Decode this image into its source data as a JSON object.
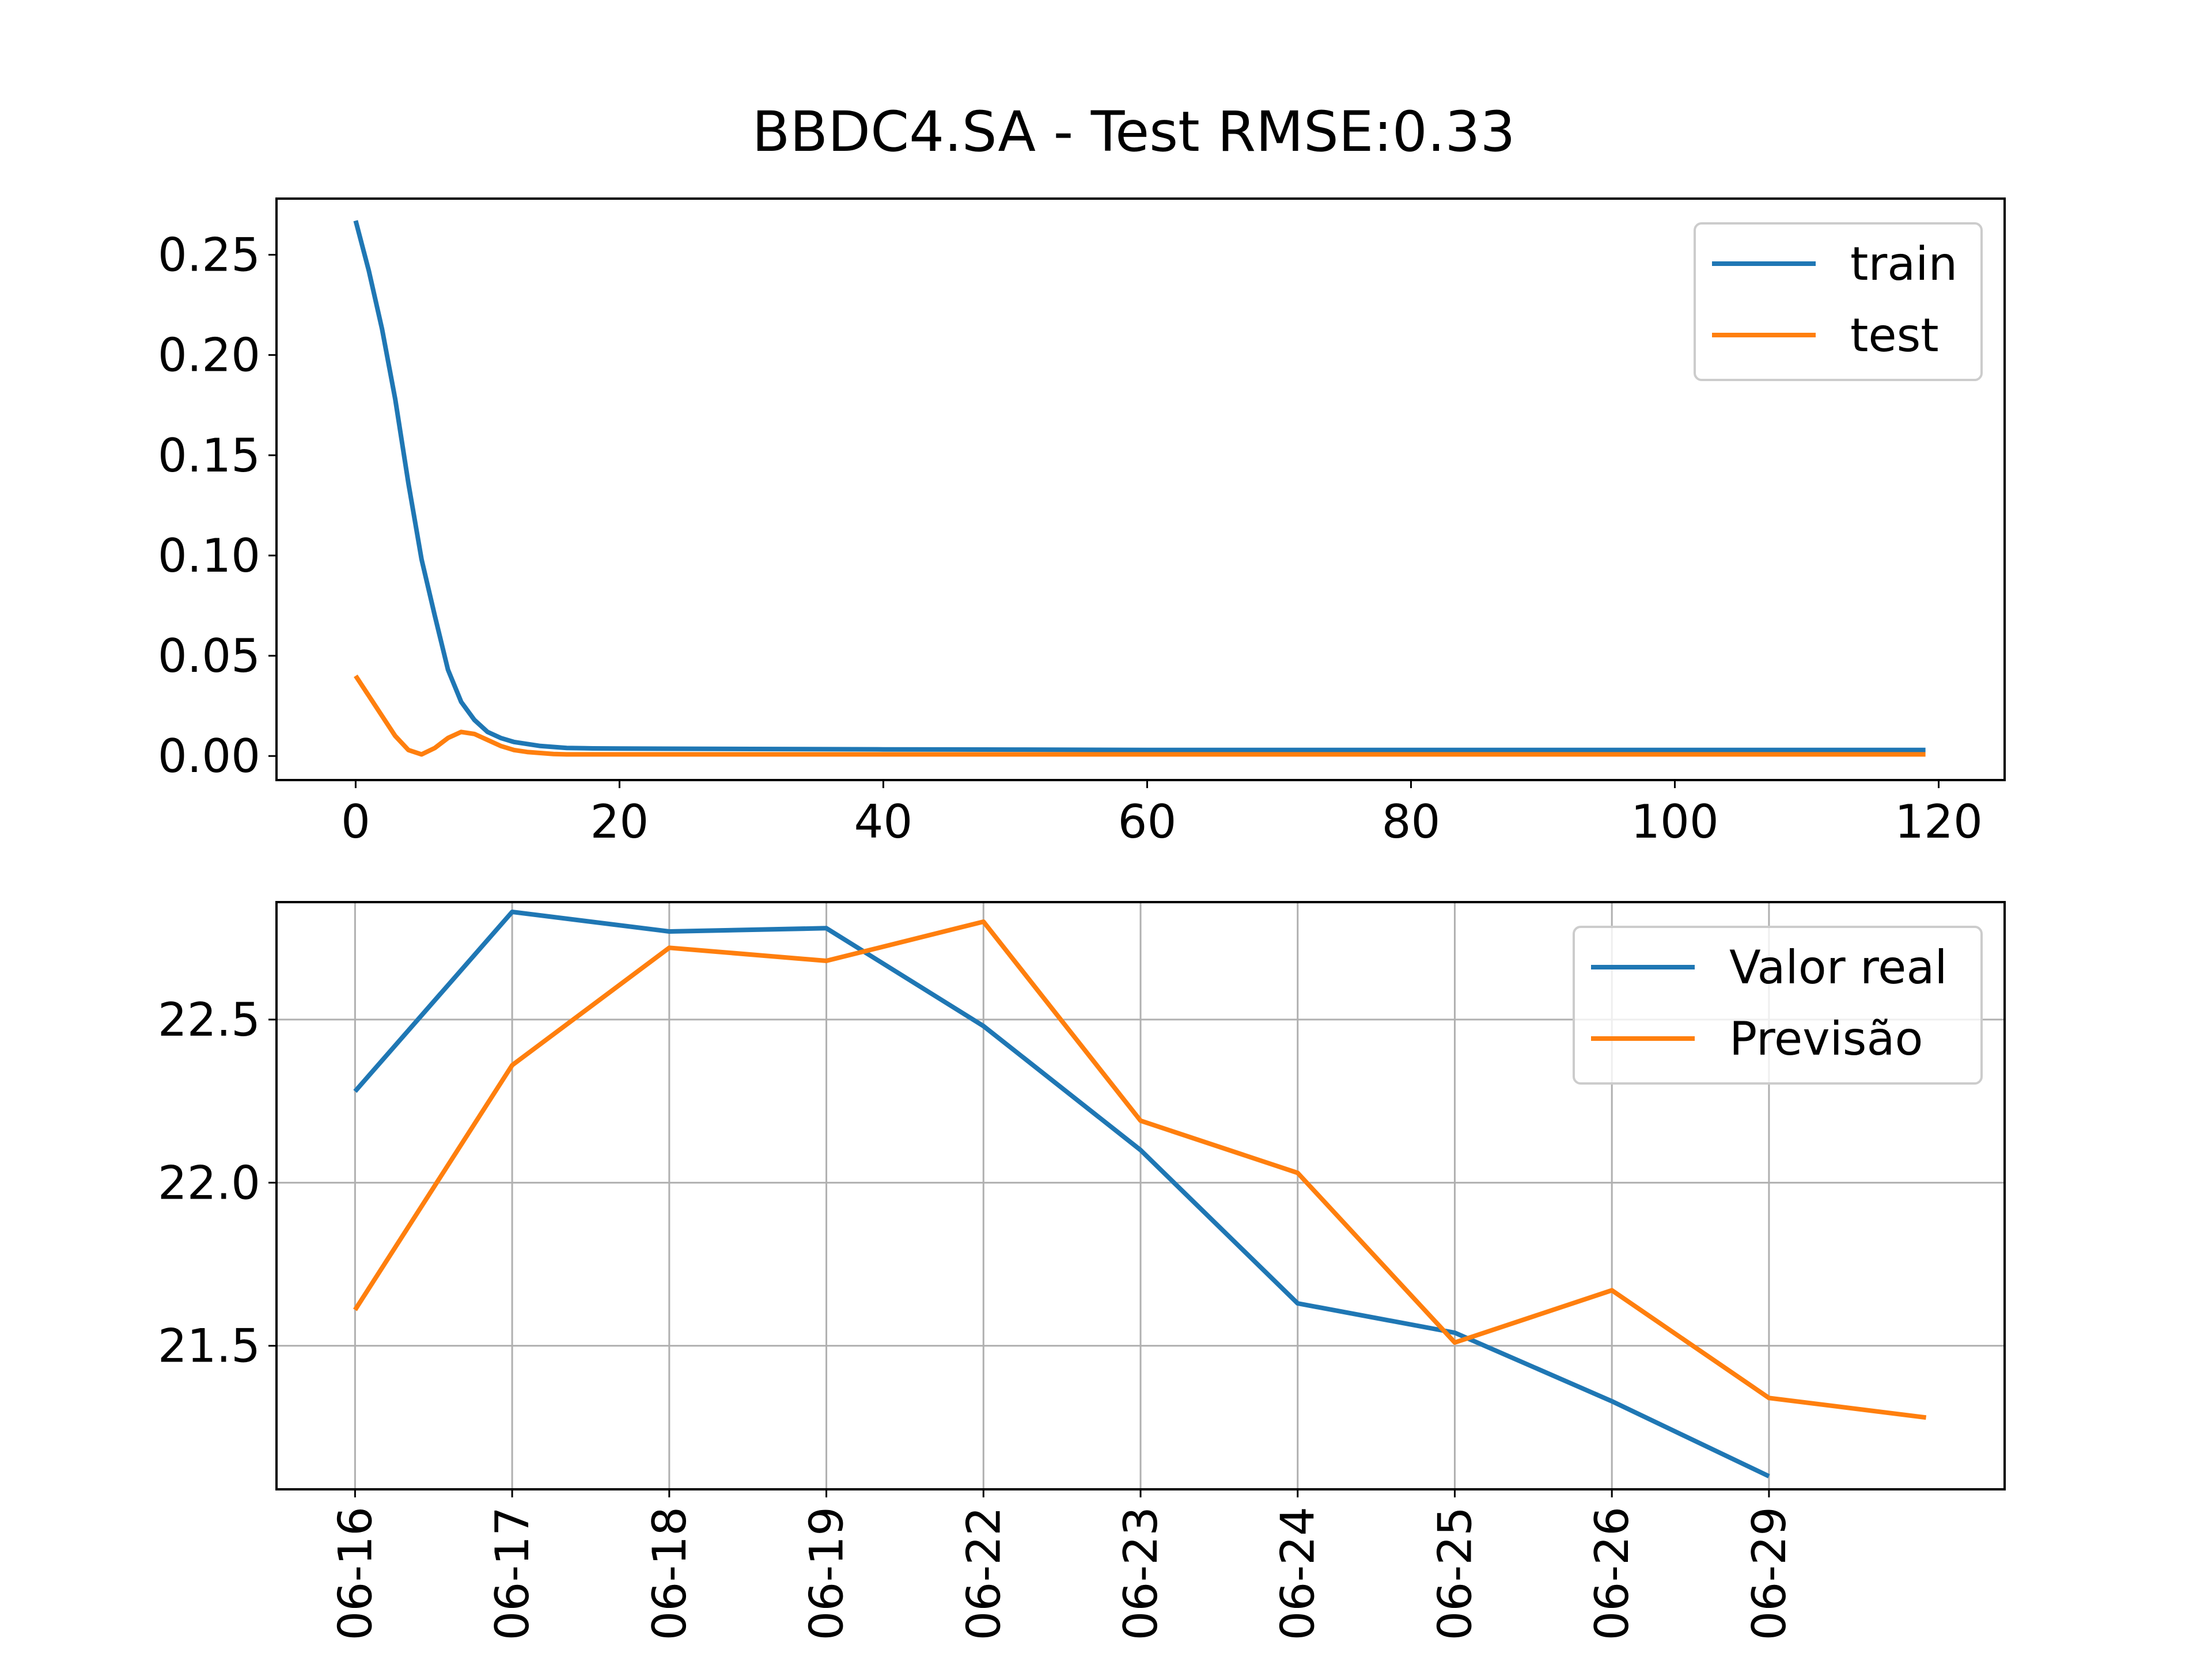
{
  "colors": {
    "series_1": "#1f77b4",
    "series_2": "#ff7f0e",
    "grid": "#b0b0b0",
    "frame": "#000000",
    "legend_border": "#cccccc"
  },
  "chart_data": [
    {
      "type": "line",
      "title": "BBDC4.SA - Test RMSE:0.33",
      "xlabel": "",
      "ylabel": "",
      "xlim": [
        -6,
        125
      ],
      "ylim": [
        -0.012,
        0.278
      ],
      "xticks": [
        0,
        20,
        40,
        60,
        80,
        100,
        120
      ],
      "yticks": [
        0.0,
        0.05,
        0.1,
        0.15,
        0.2,
        0.25
      ],
      "ytick_labels": [
        "0.00",
        "0.05",
        "0.10",
        "0.15",
        "0.20",
        "0.25"
      ],
      "grid": false,
      "legend": "top-right",
      "series": [
        {
          "name": "train",
          "color": "#1f77b4",
          "x": [
            0,
            1,
            2,
            3,
            4,
            5,
            6,
            7,
            8,
            9,
            10,
            11,
            12,
            13,
            14,
            15,
            16,
            18,
            20,
            30,
            40,
            50,
            60,
            70,
            80,
            90,
            100,
            110,
            119
          ],
          "y": [
            0.267,
            0.242,
            0.213,
            0.178,
            0.136,
            0.098,
            0.07,
            0.043,
            0.027,
            0.018,
            0.012,
            0.009,
            0.007,
            0.006,
            0.005,
            0.0045,
            0.004,
            0.0038,
            0.0037,
            0.0035,
            0.0033,
            0.0032,
            0.003,
            0.003,
            0.003,
            0.003,
            0.003,
            0.003,
            0.003
          ]
        },
        {
          "name": "test",
          "color": "#ff7f0e",
          "x": [
            0,
            1,
            2,
            3,
            4,
            5,
            6,
            7,
            8,
            9,
            10,
            11,
            12,
            13,
            14,
            15,
            16,
            18,
            20,
            30,
            40,
            60,
            80,
            100,
            119
          ],
          "y": [
            0.04,
            0.03,
            0.02,
            0.01,
            0.003,
            0.0008,
            0.004,
            0.009,
            0.012,
            0.011,
            0.008,
            0.005,
            0.003,
            0.002,
            0.0015,
            0.001,
            0.0008,
            0.0008,
            0.0008,
            0.0008,
            0.0008,
            0.0008,
            0.0008,
            0.0008,
            0.0008
          ]
        }
      ]
    },
    {
      "type": "line",
      "title": "",
      "xlabel": "",
      "ylabel": "",
      "categories": [
        "06-16",
        "06-17",
        "06-18",
        "06-19",
        "06-22",
        "06-23",
        "06-24",
        "06-25",
        "06-26",
        "06-29"
      ],
      "xlim": [
        -0.5,
        10.5
      ],
      "ylim": [
        21.06,
        22.86
      ],
      "yticks": [
        21.5,
        22.0,
        22.5
      ],
      "ytick_labels": [
        "21.5",
        "22.0",
        "22.5"
      ],
      "grid": true,
      "legend": "top-right",
      "series": [
        {
          "name": "Valor real",
          "color": "#1f77b4",
          "x": [
            0,
            1,
            2,
            3,
            4,
            5,
            6,
            7,
            8,
            9
          ],
          "y": [
            22.28,
            22.83,
            22.77,
            22.78,
            22.48,
            22.1,
            21.63,
            21.54,
            21.33,
            21.1
          ]
        },
        {
          "name": "Previsão",
          "color": "#ff7f0e",
          "x": [
            0,
            1,
            2,
            3,
            4,
            5,
            6,
            7,
            8,
            9,
            10
          ],
          "y": [
            21.61,
            22.36,
            22.72,
            22.68,
            22.8,
            22.19,
            22.03,
            21.51,
            21.67,
            21.34,
            21.28
          ]
        }
      ]
    }
  ]
}
